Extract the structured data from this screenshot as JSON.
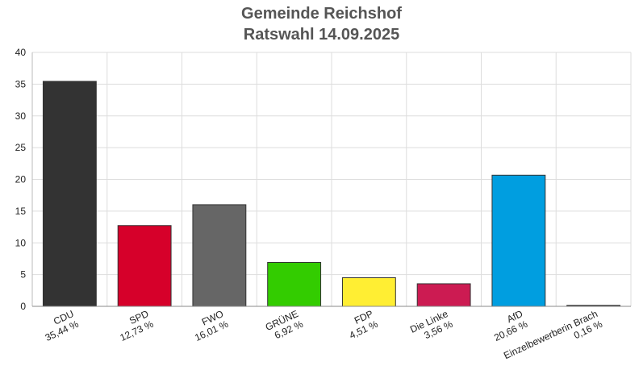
{
  "chart_data": {
    "type": "bar",
    "title": "Gemeinde Reichshof",
    "subtitle": "Ratswahl 14.09.2025",
    "categories": [
      "CDU",
      "SPD",
      "FWO",
      "GRÜNE",
      "FDP",
      "Die Linke",
      "AfD",
      "Einzelbewerberin Brach"
    ],
    "value_labels": [
      "35,44 %",
      "12,73 %",
      "16,01 %",
      "6,92 %",
      "4,51 %",
      "3,56 %",
      "20,66 %",
      "0,16 %"
    ],
    "values": [
      35.44,
      12.73,
      16.01,
      6.92,
      4.51,
      3.56,
      20.66,
      0.16
    ],
    "colors": [
      "#333333",
      "#d6002a",
      "#666666",
      "#33cc00",
      "#ffee33",
      "#cc1b52",
      "#009ee0",
      "#555555"
    ],
    "ylim": [
      0,
      40
    ],
    "yticks": [
      0,
      5,
      10,
      15,
      20,
      25,
      30,
      35,
      40
    ],
    "xlabel": "",
    "ylabel": "",
    "grid": true,
    "legend": "none"
  }
}
